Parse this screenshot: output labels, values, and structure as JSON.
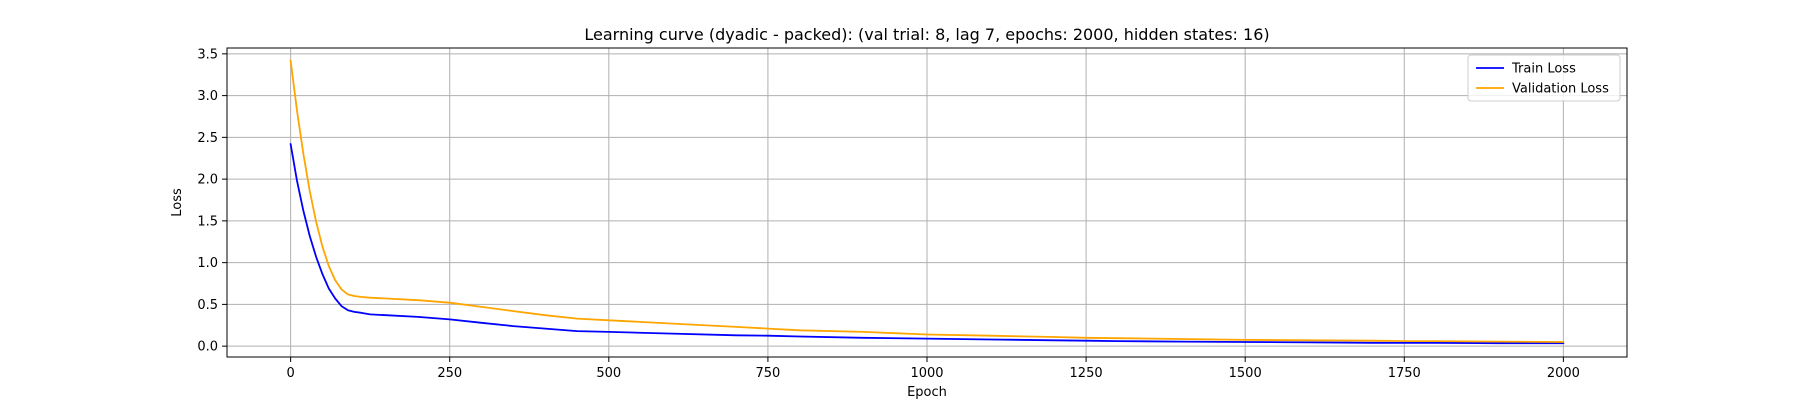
{
  "chart_data": {
    "type": "line",
    "title": "Learning curve (dyadic - packed): (val trial: 8, lag 7, epochs: 2000, hidden states: 16)",
    "xlabel": "Epoch",
    "ylabel": "Loss",
    "xlim": [
      -100,
      2100
    ],
    "ylim": [
      -0.13,
      3.57
    ],
    "xticks": [
      0,
      250,
      500,
      750,
      1000,
      1250,
      1500,
      1750,
      2000
    ],
    "xtick_labels": [
      "0",
      "250",
      "500",
      "750",
      "1000",
      "1250",
      "1500",
      "1750",
      "2000"
    ],
    "yticks": [
      0.0,
      0.5,
      1.0,
      1.5,
      2.0,
      2.5,
      3.0,
      3.5
    ],
    "ytick_labels": [
      "0.0",
      "0.5",
      "1.0",
      "1.5",
      "2.0",
      "2.5",
      "3.0",
      "3.5"
    ],
    "grid": true,
    "legend_position": "top-right",
    "series": [
      {
        "name": "Train Loss",
        "color": "#0000ff",
        "x": [
          0,
          10,
          20,
          30,
          40,
          50,
          60,
          70,
          80,
          90,
          100,
          110,
          125,
          150,
          200,
          250,
          300,
          350,
          400,
          450,
          500,
          600,
          700,
          750,
          800,
          900,
          1000,
          1100,
          1200,
          1250,
          1300,
          1400,
          1500,
          1600,
          1700,
          1750,
          1800,
          1900,
          2000
        ],
        "y": [
          2.42,
          1.98,
          1.62,
          1.32,
          1.07,
          0.86,
          0.69,
          0.57,
          0.48,
          0.43,
          0.41,
          0.4,
          0.38,
          0.37,
          0.35,
          0.32,
          0.28,
          0.24,
          0.21,
          0.18,
          0.17,
          0.15,
          0.13,
          0.125,
          0.115,
          0.1,
          0.09,
          0.08,
          0.07,
          0.065,
          0.06,
          0.055,
          0.05,
          0.045,
          0.04,
          0.04,
          0.04,
          0.035,
          0.035
        ]
      },
      {
        "name": "Validation Loss",
        "color": "#ffa500",
        "x": [
          0,
          10,
          20,
          30,
          40,
          50,
          60,
          70,
          80,
          90,
          100,
          110,
          125,
          150,
          200,
          250,
          300,
          350,
          400,
          450,
          500,
          600,
          700,
          750,
          800,
          900,
          1000,
          1100,
          1200,
          1250,
          1300,
          1400,
          1500,
          1600,
          1700,
          1750,
          1800,
          1900,
          2000
        ],
        "y": [
          3.42,
          2.82,
          2.3,
          1.86,
          1.49,
          1.19,
          0.96,
          0.79,
          0.68,
          0.62,
          0.6,
          0.59,
          0.58,
          0.57,
          0.55,
          0.52,
          0.47,
          0.42,
          0.37,
          0.33,
          0.31,
          0.27,
          0.23,
          0.21,
          0.19,
          0.17,
          0.14,
          0.125,
          0.11,
          0.1,
          0.095,
          0.085,
          0.075,
          0.07,
          0.065,
          0.06,
          0.06,
          0.055,
          0.05
        ]
      }
    ]
  }
}
